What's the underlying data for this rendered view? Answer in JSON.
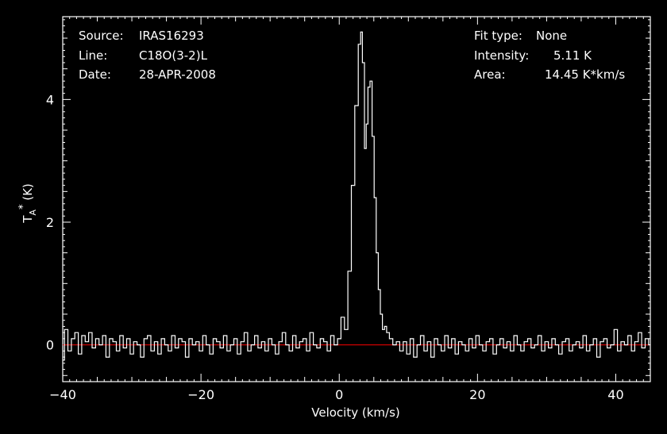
{
  "header": {
    "source_label": "Source:",
    "source_value": "IRAS16293",
    "line_label": "Line:",
    "line_value": "C18O(3-2)L",
    "date_label": "Date:",
    "date_value": "28-APR-2008",
    "fit_label": "Fit type:",
    "fit_value": "None",
    "intensity_label": "Intensity:",
    "intensity_value": "5.11 K",
    "area_label": "Area:",
    "area_value": "14.45 K*km/s"
  },
  "chart_data": {
    "type": "line",
    "xlabel": "Velocity (km/s)",
    "ylabel": "T_A^* (K)",
    "ylabel_parts": {
      "main": "T",
      "sub": "A",
      "sup": "*",
      "unit": " (K)"
    },
    "xlim": [
      -40,
      45
    ],
    "ylim": [
      -0.6,
      5.35
    ],
    "xticks": [
      -40,
      -20,
      0,
      20,
      40
    ],
    "xtick_labels": [
      "−40",
      "−20",
      "0",
      "20",
      "40"
    ],
    "yticks": [
      0,
      2,
      4
    ],
    "ytick_labels": [
      "0",
      "2",
      "4"
    ],
    "grid": false,
    "colors": {
      "background": "#000000",
      "spectrum": "#ffffff",
      "baseline": "#cc0000",
      "frame": "#ffffff"
    },
    "baseline_y": 0,
    "series": [
      {
        "x": [
          0.0,
          0.5,
          1.0,
          1.5,
          2.0,
          2.5,
          3.0,
          3.2,
          3.5,
          3.8,
          4.0,
          4.3,
          4.6,
          4.9,
          5.2,
          5.5,
          5.8,
          6.1,
          6.4,
          6.7,
          7.0,
          7.5,
          8.0,
          8.5
        ],
        "y": [
          0.1,
          0.45,
          0.25,
          1.2,
          2.6,
          3.9,
          4.9,
          5.1,
          4.6,
          3.2,
          3.6,
          4.2,
          4.3,
          3.4,
          2.4,
          1.5,
          0.9,
          0.5,
          0.25,
          0.3,
          0.2,
          0.1,
          0.0,
          0.05
        ]
      },
      {
        "x": [
          -40.0,
          -39.5,
          -39.0,
          -38.5,
          -38.0,
          -37.5,
          -37.0,
          -36.5,
          -36.0,
          -35.5,
          -35.0,
          -34.5,
          -34.0,
          -33.5,
          -33.0,
          -32.5,
          -32.0,
          -31.5,
          -31.0,
          -30.5,
          -30.0,
          -29.5,
          -29.0,
          -28.5,
          -28.0,
          -27.5,
          -27.0,
          -26.5,
          -26.0,
          -25.5,
          -25.0,
          -24.5,
          -24.0,
          -23.5,
          -23.0,
          -22.5,
          -22.0,
          -21.5,
          -21.0,
          -20.5,
          -20.0,
          -19.5,
          -19.0,
          -18.5,
          -18.0,
          -17.5,
          -17.0,
          -16.5,
          -16.0,
          -15.5,
          -15.0,
          -14.5,
          -14.0,
          -13.5,
          -13.0,
          -12.5,
          -12.0,
          -11.5,
          -11.0,
          -10.5,
          -10.0,
          -9.5,
          -9.0,
          -8.5,
          -8.0,
          -7.5,
          -7.0,
          -6.5,
          -6.0,
          -5.5,
          -5.0,
          -4.5,
          -4.0,
          -3.5,
          -3.0,
          -2.5,
          -2.0,
          -1.5,
          -1.0,
          -0.5
        ],
        "y": [
          -0.25,
          0.25,
          -0.1,
          0.1,
          0.2,
          -0.15,
          0.15,
          0.05,
          0.2,
          -0.05,
          0.1,
          0.0,
          0.15,
          -0.2,
          0.1,
          0.05,
          -0.1,
          0.15,
          -0.05,
          0.1,
          -0.15,
          0.05,
          0.0,
          -0.2,
          0.1,
          0.15,
          -0.1,
          0.05,
          -0.15,
          0.1,
          0.0,
          -0.1,
          0.15,
          -0.05,
          0.1,
          0.05,
          -0.2,
          0.1,
          0.0,
          0.05,
          -0.1,
          0.15,
          0.0,
          -0.15,
          0.1,
          0.05,
          -0.05,
          0.15,
          -0.1,
          0.0,
          0.1,
          -0.15,
          0.05,
          0.2,
          -0.1,
          0.0,
          0.15,
          -0.05,
          0.05,
          -0.1,
          0.1,
          0.0,
          -0.15,
          0.05,
          0.2,
          0.0,
          -0.1,
          0.15,
          -0.05,
          0.05,
          0.1,
          -0.1,
          0.2,
          0.0,
          -0.05,
          0.1,
          0.05,
          -0.1,
          0.15,
          0.0
        ]
      },
      {
        "x": [
          9.0,
          9.5,
          10.0,
          10.5,
          11.0,
          11.5,
          12.0,
          12.5,
          13.0,
          13.5,
          14.0,
          14.5,
          15.0,
          15.5,
          16.0,
          16.5,
          17.0,
          17.5,
          18.0,
          18.5,
          19.0,
          19.5,
          20.0,
          20.5,
          21.0,
          21.5,
          22.0,
          22.5,
          23.0,
          23.5,
          24.0,
          24.5,
          25.0,
          25.5,
          26.0,
          26.5,
          27.0,
          27.5,
          28.0,
          28.5,
          29.0,
          29.5,
          30.0,
          30.5,
          31.0,
          31.5,
          32.0,
          32.5,
          33.0,
          33.5,
          34.0,
          34.5,
          35.0,
          35.5,
          36.0,
          36.5,
          37.0,
          37.5,
          38.0,
          38.5,
          39.0,
          39.5,
          40.0,
          40.5,
          41.0,
          41.5,
          42.0,
          42.5,
          43.0,
          43.5,
          44.0,
          44.5,
          45.0
        ],
        "y": [
          -0.1,
          0.05,
          -0.15,
          0.1,
          -0.2,
          0.0,
          0.15,
          -0.1,
          0.05,
          -0.2,
          0.1,
          0.0,
          -0.1,
          0.15,
          -0.05,
          0.1,
          -0.15,
          0.05,
          0.0,
          -0.1,
          0.1,
          -0.05,
          0.15,
          0.0,
          -0.1,
          0.05,
          0.1,
          -0.15,
          0.0,
          0.1,
          -0.05,
          0.05,
          -0.1,
          0.15,
          0.0,
          -0.1,
          0.05,
          0.1,
          -0.05,
          0.0,
          0.15,
          -0.1,
          0.05,
          -0.05,
          0.1,
          0.0,
          -0.15,
          0.05,
          0.1,
          -0.1,
          0.0,
          0.05,
          -0.05,
          0.15,
          -0.1,
          0.0,
          0.1,
          -0.2,
          0.05,
          0.1,
          -0.05,
          0.0,
          0.25,
          -0.1,
          0.05,
          0.0,
          0.15,
          -0.1,
          0.05,
          0.2,
          -0.05,
          0.1,
          0.0
        ]
      }
    ]
  }
}
